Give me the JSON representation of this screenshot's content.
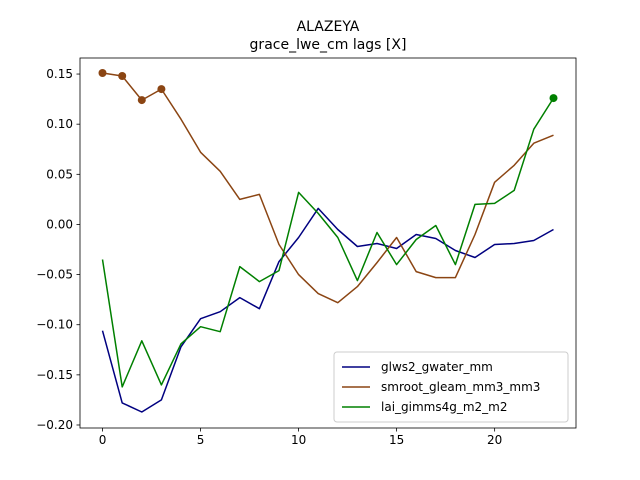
{
  "chart_data": {
    "type": "line",
    "title": "ALAZEYA",
    "subtitle": "grace_lwe_cm lags [X]",
    "xlabel": "",
    "ylabel": "",
    "xlim": [
      -1.15,
      24.15
    ],
    "ylim": [
      -0.203,
      0.166
    ],
    "xticks": [
      0,
      5,
      10,
      15,
      20
    ],
    "yticks": [
      -0.2,
      -0.15,
      -0.1,
      -0.05,
      0.0,
      0.05,
      0.1,
      0.15
    ],
    "ytick_labels": [
      "−0.20",
      "−0.15",
      "−0.10",
      "−0.05",
      "0.00",
      "0.05",
      "0.10",
      "0.15"
    ],
    "grid": false,
    "legend_position": "lower-right",
    "x": [
      0,
      1,
      2,
      3,
      4,
      5,
      6,
      7,
      8,
      9,
      10,
      11,
      12,
      13,
      14,
      15,
      16,
      17,
      18,
      19,
      20,
      21,
      22,
      23
    ],
    "series": [
      {
        "name": "glws2_gwater_mm",
        "color": "#000080",
        "values": [
          -0.106,
          -0.178,
          -0.187,
          -0.175,
          -0.122,
          -0.094,
          -0.087,
          -0.073,
          -0.084,
          -0.037,
          -0.013,
          0.016,
          -0.005,
          -0.022,
          -0.019,
          -0.024,
          -0.01,
          -0.014,
          -0.026,
          -0.033,
          -0.02,
          -0.019,
          -0.016,
          -0.005
        ],
        "markers": []
      },
      {
        "name": "smroot_gleam_mm3_mm3",
        "color": "#8B4513",
        "values": [
          0.151,
          0.148,
          0.124,
          0.135,
          0.105,
          0.072,
          0.053,
          0.025,
          0.03,
          -0.02,
          -0.05,
          -0.069,
          -0.078,
          -0.062,
          -0.038,
          -0.013,
          -0.047,
          -0.053,
          -0.053,
          -0.01,
          0.042,
          0.059,
          0.081,
          0.089
        ],
        "markers": [
          0,
          1,
          2,
          3
        ]
      },
      {
        "name": "lai_gimms4g_m2_m2",
        "color": "#008000",
        "values": [
          -0.035,
          -0.162,
          -0.116,
          -0.16,
          -0.119,
          -0.102,
          -0.107,
          -0.042,
          -0.057,
          -0.046,
          0.032,
          0.011,
          -0.013,
          -0.056,
          -0.008,
          -0.04,
          -0.015,
          -0.001,
          -0.04,
          0.02,
          0.021,
          0.034,
          0.095,
          0.126
        ],
        "markers": [
          23
        ]
      }
    ]
  }
}
